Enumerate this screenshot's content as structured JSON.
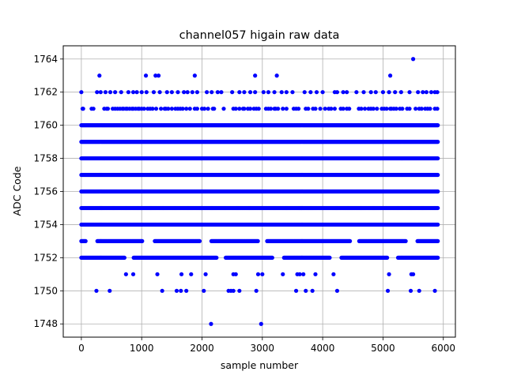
{
  "chart_data": {
    "type": "scatter",
    "title": "channel057 higain raw data",
    "xlabel": "sample number",
    "ylabel": "ADC Code",
    "xlim": [
      -300,
      6200
    ],
    "ylim": [
      1747.2,
      1764.8
    ],
    "xticks": [
      0,
      1000,
      2000,
      3000,
      4000,
      5000,
      6000
    ],
    "xtick_labels": [
      "0",
      "1000",
      "2000",
      "3000",
      "4000",
      "5000",
      "6000"
    ],
    "yticks": [
      1748,
      1750,
      1752,
      1754,
      1756,
      1758,
      1760,
      1762,
      1764
    ],
    "ytick_labels": [
      "1748",
      "1750",
      "1752",
      "1754",
      "1756",
      "1758",
      "1760",
      "1762",
      "1764"
    ],
    "grid": true,
    "marker_color": "#0000ff",
    "x_range": [
      0,
      5920
    ],
    "dense_levels": [
      1754,
      1755,
      1756,
      1757,
      1758,
      1759,
      1760
    ],
    "medium_levels": [
      1752,
      1753
    ],
    "sparse_points": [
      {
        "y": 1761,
        "x": [
          20,
          30,
          170,
          200,
          380,
          420,
          440,
          520,
          560,
          600,
          640,
          680,
          700,
          740,
          760,
          800,
          840,
          860,
          900,
          940,
          960,
          1000,
          1040,
          1100,
          1140,
          1180,
          1240,
          1320,
          1380,
          1400,
          1440,
          1500,
          1560,
          1600,
          1640,
          1680,
          1740,
          1800,
          1880,
          1920,
          2000,
          2040,
          2100,
          2180,
          2200,
          2360,
          2520,
          2560,
          2620,
          2680,
          2700,
          2760,
          2800,
          2860,
          2900,
          2940,
          3060,
          3100,
          3140,
          3200,
          3220,
          3260,
          3340,
          3400,
          3520,
          3560,
          3600,
          3720,
          3760,
          3840,
          3880,
          3960,
          4040,
          4100,
          4140,
          4200,
          4300,
          4340,
          4400,
          4440,
          4600,
          4640,
          4700,
          4760,
          4800,
          4840,
          4900,
          4980,
          5020,
          5060,
          5120,
          5140,
          5180,
          5220,
          5280,
          5320,
          5400,
          5440,
          5540,
          5600,
          5640,
          5700,
          5740,
          5780,
          5860,
          5900
        ]
      },
      {
        "y": 1762,
        "x": 0
      },
      {
        "y": 1762,
        "x": [
          260,
          320,
          400,
          480,
          560,
          660,
          780,
          860,
          920,
          1000,
          1080,
          1200,
          1300,
          1420,
          1500,
          1600,
          1700,
          1760,
          1840,
          1920,
          2080,
          2160,
          2260,
          2320,
          2500,
          2620,
          2700,
          2800,
          2880,
          3020,
          3100,
          3200,
          3320,
          3400,
          3500,
          3700,
          3800,
          3900,
          4000,
          4200,
          4240,
          4340,
          4400,
          4560,
          4680,
          4800,
          4880,
          5000,
          5100,
          5200,
          5300,
          5440,
          5580,
          5660,
          5720,
          5800,
          5860,
          5900
        ]
      },
      {
        "y": 1763,
        "x": [
          300,
          1070,
          1230,
          1280,
          1880,
          2880,
          3240,
          5120
        ]
      },
      {
        "y": 1764,
        "x": [
          5500
        ]
      },
      {
        "y": 1751,
        "x": [
          740,
          860,
          1260,
          1660,
          1820,
          2060,
          2520,
          2560,
          2930,
          3000,
          3340,
          3580,
          3620,
          3680,
          3880,
          4180,
          5100,
          5470,
          5500
        ]
      },
      {
        "y": 1750,
        "x": [
          250,
          470,
          1340,
          1580,
          1650,
          1740,
          2030,
          2440,
          2480,
          2520,
          2620,
          2900,
          3560,
          3720,
          3830,
          4240,
          5080,
          5460,
          5600,
          5860
        ]
      },
      {
        "y": 1748,
        "x": [
          2150,
          2980
        ]
      }
    ]
  }
}
